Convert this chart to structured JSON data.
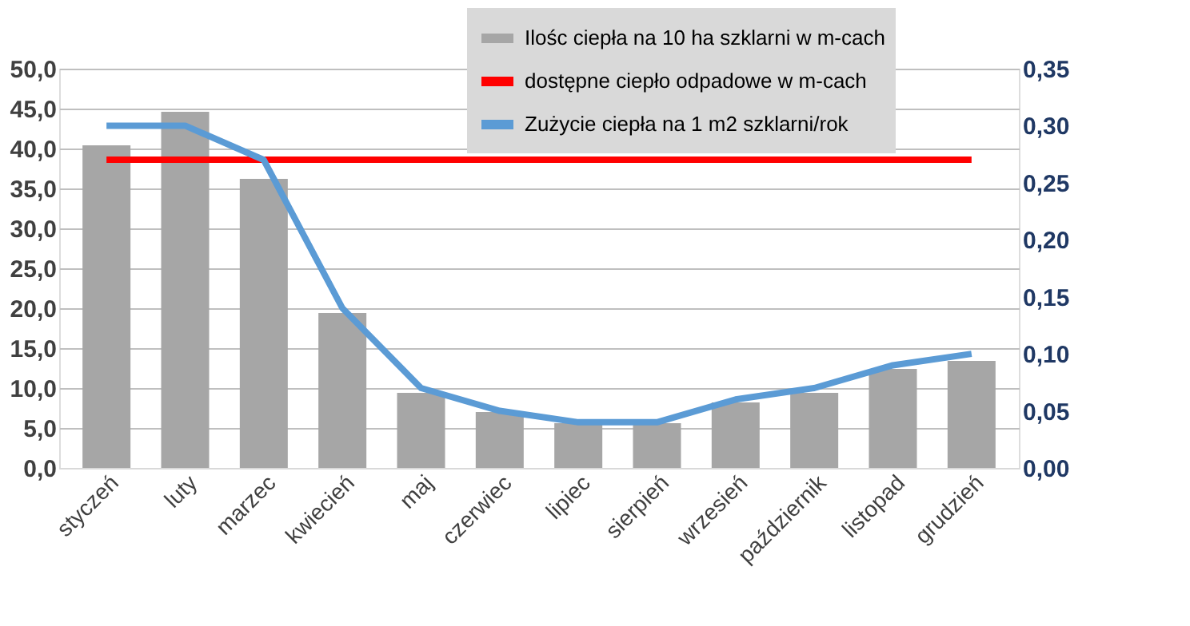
{
  "chart_data": {
    "type": "bar",
    "categories": [
      "styczeń",
      "luty",
      "marzec",
      "kwiecień",
      "maj",
      "czerwiec",
      "lipiec",
      "sierpień",
      "wrzesień",
      "październik",
      "listopad",
      "grudzień"
    ],
    "series": [
      {
        "name": "Ilośc ciepła na 10 ha szklarni w m-cach",
        "color": "#a6a6a6",
        "values": [
          40.4,
          44.6,
          36.2,
          19.4,
          9.4,
          7.0,
          5.6,
          5.6,
          8.2,
          9.4,
          12.4,
          13.4
        ]
      },
      {
        "name": "dostępne ciepło odpadowe w m-cach",
        "type": "line",
        "color": "#ff0000",
        "values": [
          38.6,
          38.6,
          38.6,
          38.6,
          38.6,
          38.6,
          38.6,
          38.6,
          38.6,
          38.6,
          38.6,
          38.6
        ]
      },
      {
        "name": "Zużycie ciepła na 1 m2 szklarni/rok",
        "type": "line",
        "axis": "y2",
        "color": "#5b9bd5",
        "values": [
          0.3,
          0.3,
          0.27,
          0.14,
          0.07,
          0.05,
          0.04,
          0.04,
          0.06,
          0.07,
          0.09,
          0.1
        ]
      }
    ],
    "ylim": [
      0,
      50
    ],
    "yticks": [
      {
        "value": 0,
        "label": "0,0"
      },
      {
        "value": 5,
        "label": "5,0"
      },
      {
        "value": 10,
        "label": "10,0"
      },
      {
        "value": 15,
        "label": "15,0"
      },
      {
        "value": 20,
        "label": "20,0"
      },
      {
        "value": 25,
        "label": "25,0"
      },
      {
        "value": 30,
        "label": "30,0"
      },
      {
        "value": 35,
        "label": "35,0"
      },
      {
        "value": 40,
        "label": "40,0"
      },
      {
        "value": 45,
        "label": "45,0"
      },
      {
        "value": 50,
        "label": "50,0"
      }
    ],
    "y2lim": [
      0,
      0.35
    ],
    "y2ticks": [
      {
        "value": 0,
        "label": "0,00"
      },
      {
        "value": 0.05,
        "label": "0,05"
      },
      {
        "value": 0.1,
        "label": "0,10"
      },
      {
        "value": 0.15,
        "label": "0,15"
      },
      {
        "value": 0.2,
        "label": "0,20"
      },
      {
        "value": 0.25,
        "label": "0,25"
      },
      {
        "value": 0.3,
        "label": "0,30"
      },
      {
        "value": 0.35,
        "label": "0,35"
      }
    ],
    "grid": "y",
    "legend": "top right",
    "marker": "none",
    "line_style": "solid"
  }
}
